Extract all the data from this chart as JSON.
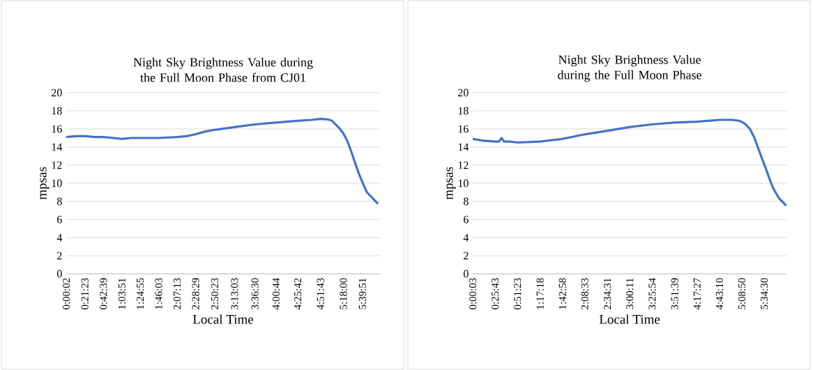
{
  "chart_data": [
    {
      "type": "line",
      "title": "Night Sky Brightness Value during the Full Moon Phase from CJ01",
      "xlabel": "Local Time",
      "ylabel": "mpsas",
      "grid": "y",
      "xlim": [
        0,
        6.0
      ],
      "ylim": [
        0,
        20
      ],
      "yticks": [
        0,
        2,
        4,
        6,
        8,
        10,
        12,
        14,
        16,
        18,
        20
      ],
      "xticks": [
        {
          "value": 0.0006,
          "label": "0:00:02"
        },
        {
          "value": 0.3564,
          "label": "0:21:23"
        },
        {
          "value": 0.7108,
          "label": "0:42:39"
        },
        {
          "value": 1.0642,
          "label": "1:03:51"
        },
        {
          "value": 1.4153,
          "label": "1:24:55"
        },
        {
          "value": 1.7675,
          "label": "1:46:03"
        },
        {
          "value": 2.1203,
          "label": "2:07:13"
        },
        {
          "value": 2.4747,
          "label": "2:28:29"
        },
        {
          "value": 2.8397,
          "label": "2:50:23"
        },
        {
          "value": 3.2175,
          "label": "3:13:03"
        },
        {
          "value": 3.6083,
          "label": "3:36:30"
        },
        {
          "value": 4.0122,
          "label": "4:00:44"
        },
        {
          "value": 4.4283,
          "label": "4:25:42"
        },
        {
          "value": 4.8619,
          "label": "4:51:43"
        },
        {
          "value": 5.3,
          "label": "5:18:00"
        },
        {
          "value": 5.6642,
          "label": "5:39:51"
        }
      ],
      "x": [
        0.0,
        0.2,
        0.36,
        0.55,
        0.71,
        0.9,
        1.06,
        1.25,
        1.42,
        1.77,
        2.12,
        2.3,
        2.47,
        2.65,
        2.84,
        3.22,
        3.61,
        4.01,
        4.43,
        4.7,
        4.86,
        5.0,
        5.08,
        5.15,
        5.22,
        5.3,
        5.38,
        5.45,
        5.52,
        5.6,
        5.68,
        5.75,
        5.85,
        5.95
      ],
      "series": [
        {
          "color": "#4472c4",
          "values": [
            15.1,
            15.2,
            15.2,
            15.1,
            15.1,
            15.0,
            14.9,
            15.0,
            15.0,
            15.0,
            15.1,
            15.2,
            15.4,
            15.7,
            15.9,
            16.2,
            16.5,
            16.7,
            16.9,
            17.0,
            17.1,
            17.05,
            16.9,
            16.5,
            16.1,
            15.5,
            14.6,
            13.5,
            12.3,
            11.0,
            9.9,
            9.0,
            8.4,
            7.8
          ]
        }
      ]
    },
    {
      "type": "line",
      "title": "Night Sky Brightness Value during the Full Moon Phase",
      "xlabel": "Local Time",
      "ylabel": "mpsas",
      "grid": "y",
      "xlim": [
        0,
        6.0
      ],
      "ylim": [
        0,
        20
      ],
      "yticks": [
        0,
        2,
        4,
        6,
        8,
        10,
        12,
        14,
        16,
        18,
        20
      ],
      "xticks": [
        {
          "value": 0.0008,
          "label": "0:00:03"
        },
        {
          "value": 0.4286,
          "label": "0:25:43"
        },
        {
          "value": 0.8564,
          "label": "0:51:23"
        },
        {
          "value": 1.2883,
          "label": "1:17:18"
        },
        {
          "value": 1.7161,
          "label": "1:42:58"
        },
        {
          "value": 2.1425,
          "label": "2:08:33"
        },
        {
          "value": 2.5753,
          "label": "2:34:31"
        },
        {
          "value": 3.0031,
          "label": "3:00:11"
        },
        {
          "value": 3.4317,
          "label": "3:25:54"
        },
        {
          "value": 3.8608,
          "label": "3:51:39"
        },
        {
          "value": 4.2908,
          "label": "4:17:27"
        },
        {
          "value": 4.7194,
          "label": "4:43:10"
        },
        {
          "value": 5.1472,
          "label": "5:08:50"
        },
        {
          "value": 5.575,
          "label": "5:34:30"
        }
      ],
      "x": [
        0.0,
        0.2,
        0.43,
        0.5,
        0.55,
        0.6,
        0.7,
        0.86,
        1.29,
        1.72,
        2.14,
        2.58,
        3.0,
        3.43,
        3.86,
        4.29,
        4.72,
        4.95,
        5.1,
        5.2,
        5.3,
        5.38,
        5.45,
        5.52,
        5.6,
        5.68,
        5.75,
        5.85,
        5.98
      ],
      "series": [
        {
          "color": "#4472c4",
          "values": [
            14.9,
            14.7,
            14.6,
            14.6,
            15.0,
            14.6,
            14.6,
            14.5,
            14.6,
            14.9,
            15.4,
            15.8,
            16.2,
            16.5,
            16.7,
            16.8,
            17.0,
            17.0,
            16.9,
            16.6,
            16.0,
            15.1,
            14.0,
            12.9,
            11.7,
            10.4,
            9.4,
            8.4,
            7.6
          ]
        }
      ]
    }
  ]
}
